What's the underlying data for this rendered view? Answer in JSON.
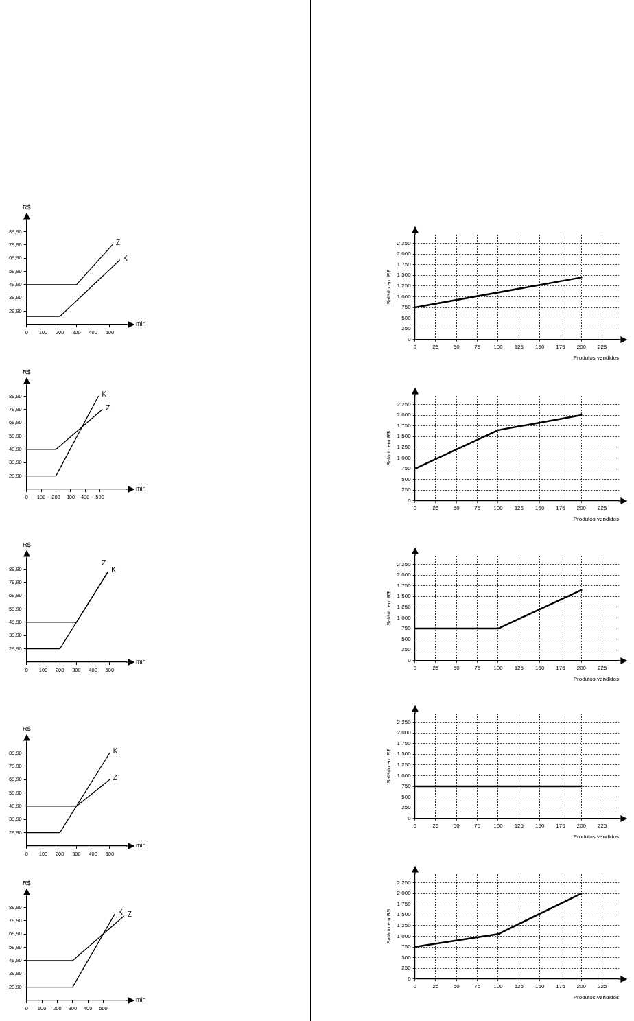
{
  "chart_data": [
    {
      "type": "line",
      "xlabel": "min",
      "ylabel": "R$",
      "xlim": [
        0,
        600
      ],
      "ylim": [
        19.9,
        97.9
      ],
      "xticks": [
        0,
        100,
        200,
        300,
        400,
        500
      ],
      "yticks": [
        {
          "value": 29.9,
          "label": "29,90"
        },
        {
          "value": 39.9,
          "label": "39,90"
        },
        {
          "value": 49.9,
          "label": "49,90"
        },
        {
          "value": 59.9,
          "label": "59,90"
        },
        {
          "value": 69.9,
          "label": "69,90"
        },
        {
          "value": 79.9,
          "label": "79,90"
        },
        {
          "value": 89.9,
          "label": "89,90"
        }
      ],
      "grid": false,
      "legend": false,
      "marker": "none",
      "line_style": "solid",
      "series": [
        {
          "name": "Z",
          "color": "#000000",
          "x": [
            0,
            300,
            517
          ],
          "values": [
            49.9,
            49.9,
            80
          ]
        },
        {
          "name": "K",
          "color": "#000000",
          "x": [
            0,
            200,
            560
          ],
          "values": [
            26,
            26,
            68.3
          ]
        }
      ]
    },
    {
      "type": "line",
      "xlabel": "min",
      "ylabel": "R$",
      "xlim": [
        0,
        680
      ],
      "ylim": [
        19.9,
        97.9
      ],
      "xticks": [
        0,
        100,
        200,
        300,
        400,
        500
      ],
      "yticks": [
        {
          "value": 29.9,
          "label": "29,90"
        },
        {
          "value": 39.9,
          "label": "39,90"
        },
        {
          "value": 49.9,
          "label": "49,90"
        },
        {
          "value": 59.9,
          "label": "59,90"
        },
        {
          "value": 69.9,
          "label": "69,90"
        },
        {
          "value": 79.9,
          "label": "79,90"
        },
        {
          "value": 89.9,
          "label": "89,90"
        }
      ],
      "grid": false,
      "legend": false,
      "marker": "none",
      "line_style": "solid",
      "series": [
        {
          "name": "K",
          "color": "#000000",
          "x": [
            0,
            200,
            490
          ],
          "values": [
            29.9,
            29.9,
            89.9
          ]
        },
        {
          "name": "Z",
          "color": "#000000",
          "x": [
            0,
            200,
            517
          ],
          "values": [
            49.9,
            49.9,
            79.9
          ]
        }
      ]
    },
    {
      "type": "line",
      "xlabel": "min",
      "ylabel": "R$",
      "xlim": [
        0,
        600
      ],
      "ylim": [
        19.9,
        97.9
      ],
      "xticks": [
        0,
        100,
        200,
        300,
        400,
        500
      ],
      "yticks": [
        {
          "value": 29.9,
          "label": "29,90"
        },
        {
          "value": 39.9,
          "label": "39,90"
        },
        {
          "value": 49.9,
          "label": "49,90"
        },
        {
          "value": 59.9,
          "label": "59,90"
        },
        {
          "value": 69.9,
          "label": "69,90"
        },
        {
          "value": 79.9,
          "label": "79,90"
        },
        {
          "value": 89.9,
          "label": "89,90"
        }
      ],
      "grid": false,
      "legend": false,
      "marker": "none",
      "line_style": "solid",
      "series": [
        {
          "name": "K",
          "color": "#000000",
          "x": [
            0,
            200,
            490
          ],
          "values": [
            29.9,
            29.9,
            87.9
          ]
        },
        {
          "name": "Z",
          "color": "#000000",
          "x": [
            0,
            300,
            490
          ],
          "values": [
            49.9,
            49.9,
            87.9
          ]
        }
      ]
    },
    {
      "type": "line",
      "xlabel": "min",
      "ylabel": "R$",
      "xlim": [
        0,
        600
      ],
      "ylim": [
        19.9,
        97.9
      ],
      "xticks": [
        0,
        100,
        200,
        300,
        400,
        500
      ],
      "yticks": [
        {
          "value": 29.9,
          "label": "29,90"
        },
        {
          "value": 39.9,
          "label": "39,90"
        },
        {
          "value": 49.9,
          "label": "49,90"
        },
        {
          "value": 59.9,
          "label": "59,90"
        },
        {
          "value": 69.9,
          "label": "69,90"
        },
        {
          "value": 79.9,
          "label": "79,90"
        },
        {
          "value": 89.9,
          "label": "89,90"
        }
      ],
      "grid": false,
      "legend": false,
      "marker": "none",
      "line_style": "solid",
      "series": [
        {
          "name": "K",
          "color": "#000000",
          "x": [
            0,
            200,
            500
          ],
          "values": [
            29.9,
            29.9,
            89.9
          ]
        },
        {
          "name": "Z",
          "color": "#000000",
          "x": [
            0,
            300,
            500
          ],
          "values": [
            49.9,
            49.9,
            69.9
          ]
        }
      ]
    },
    {
      "type": "line",
      "xlabel": "min",
      "ylabel": "R$",
      "xlim": [
        0,
        650
      ],
      "ylim": [
        19.9,
        97.9
      ],
      "xticks": [
        0,
        100,
        200,
        300,
        400,
        500
      ],
      "yticks": [
        {
          "value": 29.9,
          "label": "29,90"
        },
        {
          "value": 39.9,
          "label": "39,90"
        },
        {
          "value": 49.9,
          "label": "49,90"
        },
        {
          "value": 59.9,
          "label": "59,90"
        },
        {
          "value": 69.9,
          "label": "69,90"
        },
        {
          "value": 79.9,
          "label": "79,90"
        },
        {
          "value": 89.9,
          "label": "89,90"
        }
      ],
      "grid": false,
      "legend": false,
      "marker": "none",
      "line_style": "solid",
      "series": [
        {
          "name": "K",
          "color": "#000000",
          "x": [
            0,
            300,
            575
          ],
          "values": [
            29.9,
            29.9,
            84.9
          ]
        },
        {
          "name": "Z",
          "color": "#000000",
          "x": [
            0,
            300,
            635
          ],
          "values": [
            49.9,
            49.9,
            83.4
          ]
        }
      ]
    },
    {
      "type": "line",
      "xlabel": "Produtos vendidos",
      "ylabel": "Salário em R$",
      "xlim": [
        0,
        245
      ],
      "ylim": [
        0,
        2450
      ],
      "xticks": [
        0,
        25,
        50,
        75,
        100,
        125,
        150,
        175,
        200,
        225
      ],
      "yticks": [
        0,
        250,
        500,
        750,
        {
          "value": 1000,
          "label": "1 000"
        },
        {
          "value": 1250,
          "label": "1 250"
        },
        {
          "value": 1500,
          "label": "1 500"
        },
        {
          "value": 1750,
          "label": "1 750"
        },
        {
          "value": 2000,
          "label": "2 000"
        },
        {
          "value": 2250,
          "label": "2 250"
        }
      ],
      "grid": true,
      "legend": false,
      "marker": "none",
      "line_style": "solid",
      "series": [
        {
          "color": "#000000",
          "x": [
            0,
            200
          ],
          "values": [
            750,
            1450
          ]
        }
      ]
    },
    {
      "type": "line",
      "xlabel": "Produtos vendidos",
      "ylabel": "Salário em R$",
      "xlim": [
        0,
        245
      ],
      "ylim": [
        0,
        2450
      ],
      "xticks": [
        0,
        25,
        50,
        75,
        100,
        125,
        150,
        175,
        200,
        225
      ],
      "yticks": [
        0,
        250,
        500,
        750,
        {
          "value": 1000,
          "label": "1 000"
        },
        {
          "value": 1250,
          "label": "1 250"
        },
        {
          "value": 1500,
          "label": "1 500"
        },
        {
          "value": 1750,
          "label": "1 750"
        },
        {
          "value": 2000,
          "label": "2 000"
        },
        {
          "value": 2250,
          "label": "2 250"
        }
      ],
      "grid": true,
      "legend": false,
      "marker": "none",
      "line_style": "solid",
      "series": [
        {
          "color": "#000000",
          "x": [
            0,
            100,
            200
          ],
          "values": [
            750,
            1650,
            2000
          ]
        }
      ]
    },
    {
      "type": "line",
      "xlabel": "Produtos vendidos",
      "ylabel": "Salário em R$",
      "xlim": [
        0,
        245
      ],
      "ylim": [
        0,
        2450
      ],
      "xticks": [
        0,
        25,
        50,
        75,
        100,
        125,
        150,
        175,
        200,
        225
      ],
      "yticks": [
        0,
        250,
        500,
        750,
        {
          "value": 1000,
          "label": "1 000"
        },
        {
          "value": 1250,
          "label": "1 250"
        },
        {
          "value": 1500,
          "label": "1 500"
        },
        {
          "value": 1750,
          "label": "1 750"
        },
        {
          "value": 2000,
          "label": "2 000"
        },
        {
          "value": 2250,
          "label": "2 250"
        }
      ],
      "grid": true,
      "legend": false,
      "marker": "none",
      "line_style": "solid",
      "series": [
        {
          "color": "#000000",
          "x": [
            0,
            100,
            200
          ],
          "values": [
            750,
            750,
            1650
          ]
        }
      ]
    },
    {
      "type": "line",
      "xlabel": "Produtos vendidos",
      "ylabel": "Salário em R$",
      "xlim": [
        0,
        245
      ],
      "ylim": [
        0,
        2450
      ],
      "xticks": [
        0,
        25,
        50,
        75,
        100,
        125,
        150,
        175,
        200,
        225
      ],
      "yticks": [
        0,
        250,
        500,
        750,
        {
          "value": 1000,
          "label": "1 000"
        },
        {
          "value": 1250,
          "label": "1 250"
        },
        {
          "value": 1500,
          "label": "1 500"
        },
        {
          "value": 1750,
          "label": "1 750"
        },
        {
          "value": 2000,
          "label": "2 000"
        },
        {
          "value": 2250,
          "label": "2 250"
        }
      ],
      "grid": true,
      "legend": false,
      "marker": "none",
      "line_style": "solid",
      "series": [
        {
          "color": "#000000",
          "x": [
            0,
            200
          ],
          "values": [
            750,
            750
          ]
        }
      ]
    },
    {
      "type": "line",
      "xlabel": "Produtos vendidos",
      "ylabel": "Salário em R$",
      "xlim": [
        0,
        245
      ],
      "ylim": [
        0,
        2450
      ],
      "xticks": [
        0,
        25,
        50,
        75,
        100,
        125,
        150,
        175,
        200,
        225
      ],
      "yticks": [
        0,
        250,
        500,
        750,
        {
          "value": 1000,
          "label": "1 000"
        },
        {
          "value": 1250,
          "label": "1 250"
        },
        {
          "value": 1500,
          "label": "1 500"
        },
        {
          "value": 1750,
          "label": "1 750"
        },
        {
          "value": 2000,
          "label": "2 000"
        },
        {
          "value": 2250,
          "label": "2 250"
        }
      ],
      "grid": true,
      "legend": false,
      "marker": "none",
      "line_style": "solid",
      "series": [
        {
          "color": "#000000",
          "x": [
            0,
            100,
            200
          ],
          "values": [
            750,
            1050,
            2000
          ]
        }
      ]
    }
  ]
}
